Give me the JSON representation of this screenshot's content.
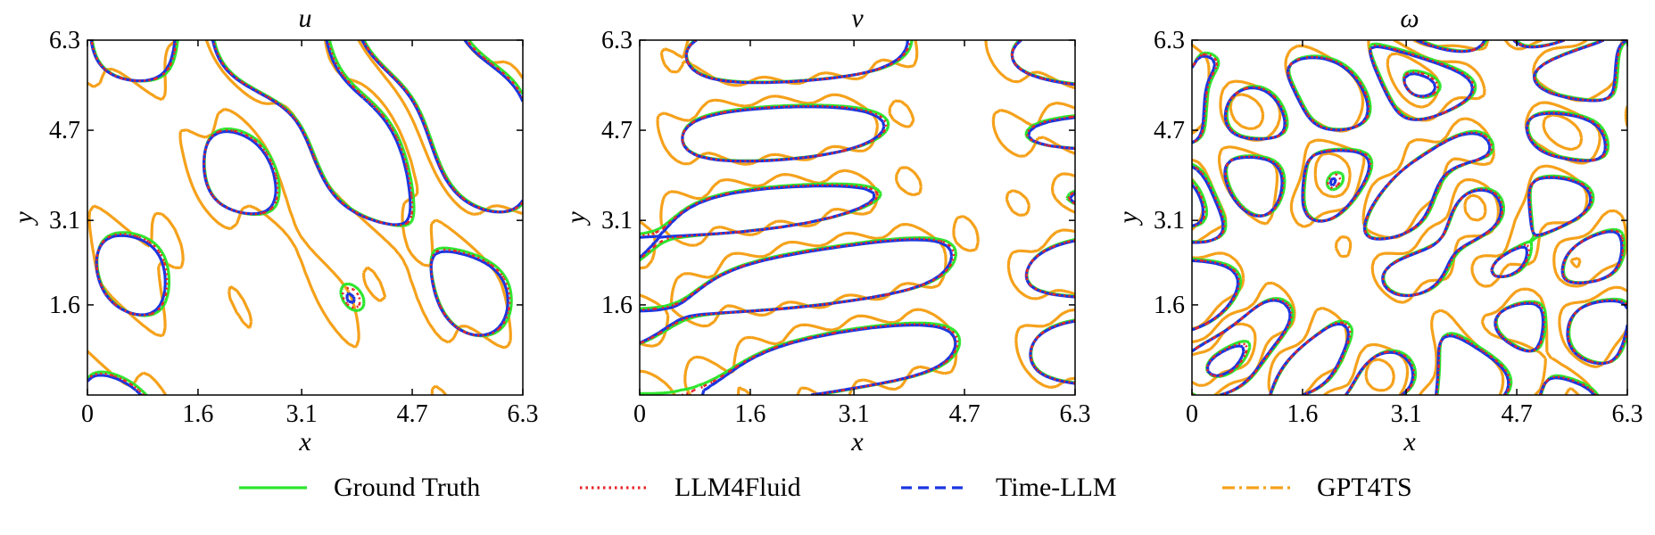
{
  "figure": {
    "legend": [
      {
        "label": "Ground Truth",
        "color": "#2ee62e",
        "dash": "solid"
      },
      {
        "label": "LLM4Fluid",
        "color": "#e8262a",
        "dash": "dotted"
      },
      {
        "label": "Time-LLM",
        "color": "#1a35e0",
        "dash": "dashed"
      },
      {
        "label": "GPT4TS",
        "color": "#f5a11a",
        "dash": "dashdot"
      }
    ]
  },
  "chart_data": [
    {
      "type": "contour",
      "title": "u",
      "xlabel": "x",
      "ylabel": "y",
      "xlim": [
        0,
        6.3
      ],
      "ylim": [
        0,
        6.3
      ],
      "xticks": [
        0,
        1.6,
        3.1,
        4.7,
        6.3
      ],
      "xtick_labels": [
        "0",
        "1.6",
        "3.1",
        "4.7",
        "6.3"
      ],
      "yticks": [
        1.6,
        3.1,
        4.7,
        6.3
      ],
      "ytick_labels": [
        "1.6",
        "3.1",
        "4.7",
        "6.3"
      ],
      "grid": false,
      "series": [
        "Ground Truth",
        "LLM4Fluid",
        "Time-LLM",
        "GPT4TS"
      ]
    },
    {
      "type": "contour",
      "title": "v",
      "xlabel": "x",
      "ylabel": "y",
      "xlim": [
        0,
        6.3
      ],
      "ylim": [
        0,
        6.3
      ],
      "xticks": [
        0,
        1.6,
        3.1,
        4.7,
        6.3
      ],
      "xtick_labels": [
        "0",
        "1.6",
        "3.1",
        "4.7",
        "6.3"
      ],
      "yticks": [
        1.6,
        3.1,
        4.7,
        6.3
      ],
      "ytick_labels": [
        "1.6",
        "3.1",
        "4.7",
        "6.3"
      ],
      "grid": false,
      "series": [
        "Ground Truth",
        "LLM4Fluid",
        "Time-LLM",
        "GPT4TS"
      ]
    },
    {
      "type": "contour",
      "title": "ω",
      "xlabel": "x",
      "ylabel": "y",
      "xlim": [
        0,
        6.3
      ],
      "ylim": [
        0,
        6.3
      ],
      "xticks": [
        0,
        1.6,
        3.1,
        4.7,
        6.3
      ],
      "xtick_labels": [
        "0",
        "1.6",
        "3.1",
        "4.7",
        "6.3"
      ],
      "yticks": [
        1.6,
        3.1,
        4.7,
        6.3
      ],
      "ytick_labels": [
        "1.6",
        "3.1",
        "4.7",
        "6.3"
      ],
      "grid": false,
      "series": [
        "Ground Truth",
        "LLM4Fluid",
        "Time-LLM",
        "GPT4TS"
      ]
    }
  ]
}
